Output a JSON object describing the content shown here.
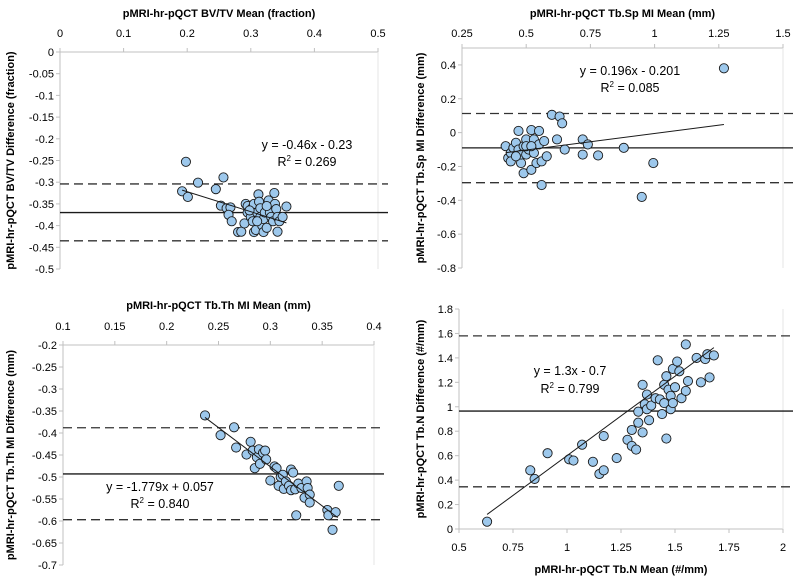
{
  "colors": {
    "point_fill": "#9dc8ec",
    "point_stroke": "#1a1a1a",
    "line": "#1a1a1a",
    "grid_axis": "#c0c0c0"
  },
  "chart_data": [
    {
      "type": "scatter",
      "xlabel": "pMRI-hr-pQCT BV/TV Mean (fraction)",
      "ylabel": "pMRI-hr-pQCT BV/TV Difference (fraction)",
      "xlim": [
        0,
        0.5
      ],
      "ylim": [
        -0.5,
        0
      ],
      "xticks": [
        "0",
        "0.1",
        "0.2",
        "0.3",
        "0.4",
        "0.5"
      ],
      "yticks": [
        "0",
        "-0.05",
        "-0.1",
        "-0.15",
        "-0.2",
        "-0.25",
        "-0.3",
        "-0.35",
        "-0.4",
        "-0.45",
        "-0.5"
      ],
      "xaxis_position": "top",
      "mean_line": -0.37,
      "limits_of_agreement": [
        -0.304,
        -0.435
      ],
      "regression": {
        "slope": -0.46,
        "intercept": -0.23,
        "x_range": [
          0.192,
          0.356
        ]
      },
      "equation": "y = -0.46x - 0.23",
      "r2_prefix": "R",
      "r2_sup": "2",
      "r2_value": " = 0.269",
      "points": [
        [
          0.198,
          -0.253
        ],
        [
          0.192,
          -0.321
        ],
        [
          0.201,
          -0.334
        ],
        [
          0.217,
          -0.301
        ],
        [
          0.245,
          -0.316
        ],
        [
          0.257,
          -0.289
        ],
        [
          0.253,
          -0.354
        ],
        [
          0.262,
          -0.36
        ],
        [
          0.268,
          -0.358
        ],
        [
          0.265,
          -0.375
        ],
        [
          0.27,
          -0.39
        ],
        [
          0.28,
          -0.415
        ],
        [
          0.285,
          -0.414
        ],
        [
          0.29,
          -0.395
        ],
        [
          0.292,
          -0.35
        ],
        [
          0.295,
          -0.355
        ],
        [
          0.295,
          -0.37
        ],
        [
          0.3,
          -0.38
        ],
        [
          0.302,
          -0.36
        ],
        [
          0.305,
          -0.35
        ],
        [
          0.303,
          -0.39
        ],
        [
          0.305,
          -0.415
        ],
        [
          0.308,
          -0.41
        ],
        [
          0.31,
          -0.37
        ],
        [
          0.312,
          -0.328
        ],
        [
          0.313,
          -0.345
        ],
        [
          0.315,
          -0.36
        ],
        [
          0.315,
          -0.38
        ],
        [
          0.318,
          -0.4
        ],
        [
          0.32,
          -0.385
        ],
        [
          0.32,
          -0.415
        ],
        [
          0.322,
          -0.37
        ],
        [
          0.325,
          -0.405
        ],
        [
          0.328,
          -0.342
        ],
        [
          0.33,
          -0.37
        ],
        [
          0.332,
          -0.38
        ],
        [
          0.335,
          -0.39
        ],
        [
          0.337,
          -0.325
        ],
        [
          0.338,
          -0.35
        ],
        [
          0.34,
          -0.362
        ],
        [
          0.342,
          -0.38
        ],
        [
          0.342,
          -0.414
        ],
        [
          0.345,
          -0.39
        ],
        [
          0.35,
          -0.38
        ],
        [
          0.356,
          -0.356
        ],
        [
          0.31,
          -0.39
        ],
        [
          0.325,
          -0.355
        ],
        [
          0.298,
          -0.365
        ]
      ]
    },
    {
      "type": "scatter",
      "xlabel": "pMRI-hr-pQCT Tb.Sp MI Mean (mm)",
      "ylabel": "pMRI-hr-pQCT Tb.Sp MI Difference (mm)",
      "xlim": [
        0.25,
        1.5
      ],
      "ylim": [
        -0.8,
        0.5
      ],
      "xticks": [
        "0.25",
        "0.5",
        "0.75",
        "1",
        "1.25",
        "1.5"
      ],
      "yticks": [
        "0.4",
        "0.2",
        "0",
        "-0.2",
        "-0.4",
        "-0.6",
        "-0.8"
      ],
      "ytick_values": [
        0.4,
        0.2,
        0,
        -0.2,
        -0.4,
        -0.6,
        -0.8
      ],
      "xaxis_position": "top",
      "mean_line": -0.09,
      "limits_of_agreement": [
        0.113,
        -0.296
      ],
      "regression": {
        "slope": 0.196,
        "intercept": -0.201,
        "x_range": [
          0.42,
          1.27
        ]
      },
      "equation": "y = 0.196x - 0.201",
      "r2_prefix": "R",
      "r2_sup": "2",
      "r2_value": " = 0.085",
      "points": [
        [
          0.42,
          -0.08
        ],
        [
          0.43,
          -0.15
        ],
        [
          0.44,
          -0.12
        ],
        [
          0.44,
          -0.17
        ],
        [
          0.45,
          -0.09
        ],
        [
          0.46,
          -0.06
        ],
        [
          0.47,
          0.01
        ],
        [
          0.47,
          -0.1
        ],
        [
          0.48,
          -0.18
        ],
        [
          0.48,
          -0.13
        ],
        [
          0.49,
          -0.08
        ],
        [
          0.49,
          -0.24
        ],
        [
          0.5,
          -0.04
        ],
        [
          0.5,
          -0.13
        ],
        [
          0.51,
          -0.1
        ],
        [
          0.52,
          0.015
        ],
        [
          0.52,
          -0.22
        ],
        [
          0.53,
          -0.04
        ],
        [
          0.53,
          -0.12
        ],
        [
          0.54,
          -0.18
        ],
        [
          0.55,
          0.01
        ],
        [
          0.55,
          -0.07
        ],
        [
          0.56,
          -0.17
        ],
        [
          0.56,
          -0.31
        ],
        [
          0.57,
          -0.05
        ],
        [
          0.58,
          -0.14
        ],
        [
          0.6,
          0.105
        ],
        [
          0.62,
          -0.04
        ],
        [
          0.63,
          0.095
        ],
        [
          0.64,
          0.055
        ],
        [
          0.65,
          -0.1
        ],
        [
          0.72,
          -0.04
        ],
        [
          0.72,
          -0.13
        ],
        [
          0.74,
          -0.07
        ],
        [
          0.78,
          -0.135
        ],
        [
          0.88,
          -0.09
        ],
        [
          0.95,
          -0.38
        ],
        [
          0.995,
          -0.18
        ],
        [
          1.27,
          0.38
        ],
        [
          0.46,
          -0.14
        ],
        [
          0.5,
          -0.08
        ],
        [
          0.52,
          -0.08
        ]
      ]
    },
    {
      "type": "scatter",
      "xlabel": "pMRI-hr-pQCT Tb.Th MI Mean (mm)",
      "ylabel": "pMRI-hr-pQCT Tb.Th MI Difference (mm)",
      "xlim": [
        0.1,
        0.4
      ],
      "ylim": [
        -0.7,
        -0.2
      ],
      "xticks": [
        "0.1",
        "0.15",
        "0.2",
        "0.25",
        "0.3",
        "0.35",
        "0.4"
      ],
      "yticks": [
        "-0.2",
        "-0.25",
        "-0.3",
        "-0.35",
        "-0.4",
        "-0.45",
        "-0.5",
        "-0.55",
        "-0.6",
        "-0.65",
        "-0.7"
      ],
      "xaxis_position": "top",
      "mean_line": -0.493,
      "limits_of_agreement": [
        -0.388,
        -0.597
      ],
      "regression": {
        "slope": -1.779,
        "intercept": 0.057,
        "x_range": [
          0.237,
          0.365
        ]
      },
      "equation": "y = -1.779x + 0.057",
      "r2_prefix": "R",
      "r2_sup": "2",
      "r2_value": " = 0.840",
      "points": [
        [
          0.237,
          -0.36
        ],
        [
          0.252,
          -0.405
        ],
        [
          0.265,
          -0.387
        ],
        [
          0.267,
          -0.433
        ],
        [
          0.277,
          -0.449
        ],
        [
          0.281,
          -0.42
        ],
        [
          0.283,
          -0.44
        ],
        [
          0.285,
          -0.48
        ],
        [
          0.287,
          -0.455
        ],
        [
          0.289,
          -0.437
        ],
        [
          0.29,
          -0.47
        ],
        [
          0.293,
          -0.445
        ],
        [
          0.295,
          -0.44
        ],
        [
          0.296,
          -0.46
        ],
        [
          0.3,
          -0.508
        ],
        [
          0.304,
          -0.476
        ],
        [
          0.306,
          -0.48
        ],
        [
          0.308,
          -0.52
        ],
        [
          0.31,
          -0.5
        ],
        [
          0.312,
          -0.495
        ],
        [
          0.313,
          -0.527
        ],
        [
          0.315,
          -0.51
        ],
        [
          0.318,
          -0.52
        ],
        [
          0.32,
          -0.483
        ],
        [
          0.32,
          -0.53
        ],
        [
          0.322,
          -0.49
        ],
        [
          0.324,
          -0.528
        ],
        [
          0.325,
          -0.587
        ],
        [
          0.327,
          -0.515
        ],
        [
          0.33,
          -0.525
        ],
        [
          0.333,
          -0.547
        ],
        [
          0.335,
          -0.51
        ],
        [
          0.336,
          -0.525
        ],
        [
          0.338,
          -0.54
        ],
        [
          0.338,
          -0.558
        ],
        [
          0.355,
          -0.575
        ],
        [
          0.356,
          -0.587
        ],
        [
          0.36,
          -0.62
        ],
        [
          0.363,
          -0.58
        ],
        [
          0.366,
          -0.52
        ]
      ]
    },
    {
      "type": "scatter",
      "xlabel": "pMRI-hr-pQCT Tb.N Mean (#/mm)",
      "ylabel": "pMRI-hr-pQCT Tb.N Difference (#/mm)",
      "xlim": [
        0.5,
        2
      ],
      "ylim": [
        0,
        1.8
      ],
      "xticks": [
        "0.5",
        "0.75",
        "1",
        "1.25",
        "1.5",
        "1.75",
        "2"
      ],
      "yticks": [
        "1.8",
        "1.6",
        "1.4",
        "1.2",
        "1",
        "0.8",
        "0.6",
        "0.4",
        "0.2",
        "0"
      ],
      "xaxis_position": "bottom",
      "mean_line": 0.965,
      "limits_of_agreement": [
        1.58,
        0.345
      ],
      "regression": {
        "slope": 1.3,
        "intercept": -0.7,
        "x_range": [
          0.63,
          1.68
        ]
      },
      "equation": "y = 1.3x - 0.7",
      "r2_prefix": "R",
      "r2_sup": "2",
      "r2_value": " = 0.799",
      "points": [
        [
          0.63,
          0.06
        ],
        [
          0.83,
          0.48
        ],
        [
          0.85,
          0.41
        ],
        [
          0.91,
          0.62
        ],
        [
          1.01,
          0.57
        ],
        [
          1.03,
          0.56
        ],
        [
          1.07,
          0.69
        ],
        [
          1.12,
          0.55
        ],
        [
          1.15,
          0.45
        ],
        [
          1.17,
          0.48
        ],
        [
          1.17,
          0.76
        ],
        [
          1.23,
          0.58
        ],
        [
          1.28,
          0.73
        ],
        [
          1.3,
          0.81
        ],
        [
          1.3,
          0.68
        ],
        [
          1.32,
          0.65
        ],
        [
          1.33,
          0.87
        ],
        [
          1.33,
          0.96
        ],
        [
          1.35,
          0.79
        ],
        [
          1.35,
          1.18
        ],
        [
          1.36,
          1.02
        ],
        [
          1.37,
          1.1
        ],
        [
          1.37,
          0.98
        ],
        [
          1.38,
          0.89
        ],
        [
          1.39,
          1.01
        ],
        [
          1.41,
          1.07
        ],
        [
          1.42,
          1.38
        ],
        [
          1.43,
          1.06
        ],
        [
          1.44,
          0.94
        ],
        [
          1.45,
          1.03
        ],
        [
          1.45,
          1.18
        ],
        [
          1.46,
          1.25
        ],
        [
          1.46,
          0.74
        ],
        [
          1.47,
          1.14
        ],
        [
          1.48,
          1.09
        ],
        [
          1.48,
          0.98
        ],
        [
          1.49,
          1.31
        ],
        [
          1.49,
          1.03
        ],
        [
          1.5,
          1.16
        ],
        [
          1.51,
          1.37
        ],
        [
          1.52,
          1.29
        ],
        [
          1.53,
          1.07
        ],
        [
          1.55,
          1.51
        ],
        [
          1.55,
          1.13
        ],
        [
          1.56,
          1.21
        ],
        [
          1.6,
          1.4
        ],
        [
          1.62,
          1.2
        ],
        [
          1.64,
          1.39
        ],
        [
          1.65,
          1.43
        ],
        [
          1.66,
          1.24
        ],
        [
          1.68,
          1.42
        ]
      ]
    }
  ]
}
